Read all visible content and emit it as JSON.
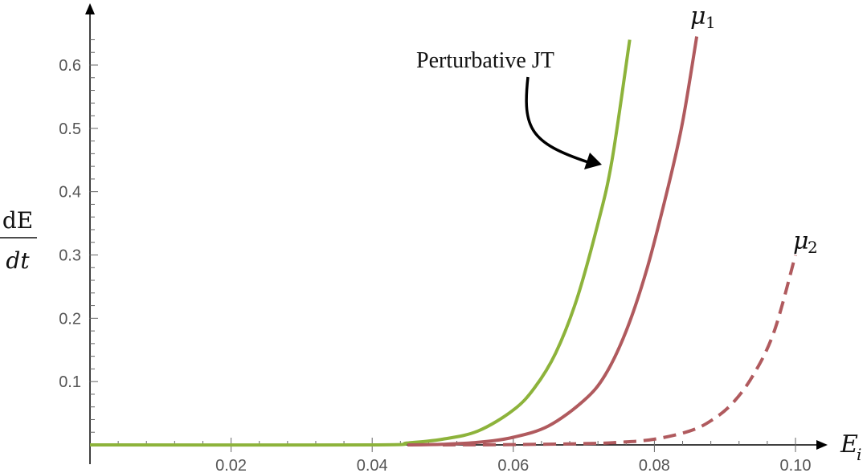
{
  "chart_data": {
    "type": "line",
    "title": "",
    "xlabel": {
      "base": "E",
      "sub": "i"
    },
    "ylabel": {
      "numerator": "dE",
      "denominator": "dt"
    },
    "xlim": [
      0.0,
      0.102
    ],
    "ylim": [
      -0.01,
      0.66
    ],
    "x_ticks": [
      0.02,
      0.04,
      0.06,
      0.08,
      0.1
    ],
    "x_tick_labels": [
      "0.02",
      "0.04",
      "0.06",
      "0.08",
      "0.10"
    ],
    "y_ticks": [
      0.1,
      0.2,
      0.3,
      0.4,
      0.5,
      0.6
    ],
    "y_tick_labels": [
      "0.1",
      "0.2",
      "0.3",
      "0.4",
      "0.5",
      "0.6"
    ],
    "grid": false,
    "series": [
      {
        "label": "Perturbative JT",
        "color": "#8db33b",
        "style": "solid",
        "x": [
          0.0,
          0.04,
          0.045,
          0.05,
          0.055,
          0.06,
          0.063,
          0.066,
          0.069,
          0.072,
          0.074,
          0.0765
        ],
        "y": [
          0.0,
          0.0,
          0.003,
          0.009,
          0.022,
          0.055,
          0.09,
          0.145,
          0.23,
          0.35,
          0.45,
          0.64
        ]
      },
      {
        "label": "μ1",
        "color": "#b05a5e",
        "style": "solid",
        "x": [
          0.045,
          0.05,
          0.055,
          0.06,
          0.065,
          0.07,
          0.073,
          0.076,
          0.079,
          0.082,
          0.084,
          0.086
        ],
        "y": [
          0.0,
          0.001,
          0.004,
          0.012,
          0.03,
          0.07,
          0.11,
          0.18,
          0.28,
          0.41,
          0.51,
          0.645
        ]
      },
      {
        "label": "μ2",
        "color": "#b05a5e",
        "style": "dashed",
        "x": [
          0.05,
          0.06,
          0.07,
          0.075,
          0.08,
          0.085,
          0.088,
          0.091,
          0.094,
          0.097,
          0.1
        ],
        "y": [
          0.0,
          0.0005,
          0.002,
          0.004,
          0.009,
          0.022,
          0.038,
          0.065,
          0.11,
          0.18,
          0.3
        ]
      }
    ],
    "annotations": {
      "perturbative_label": "Perturbative JT",
      "mu1": {
        "base": "μ",
        "sub": "1"
      },
      "mu2": {
        "base": "μ",
        "sub": "2"
      }
    }
  }
}
